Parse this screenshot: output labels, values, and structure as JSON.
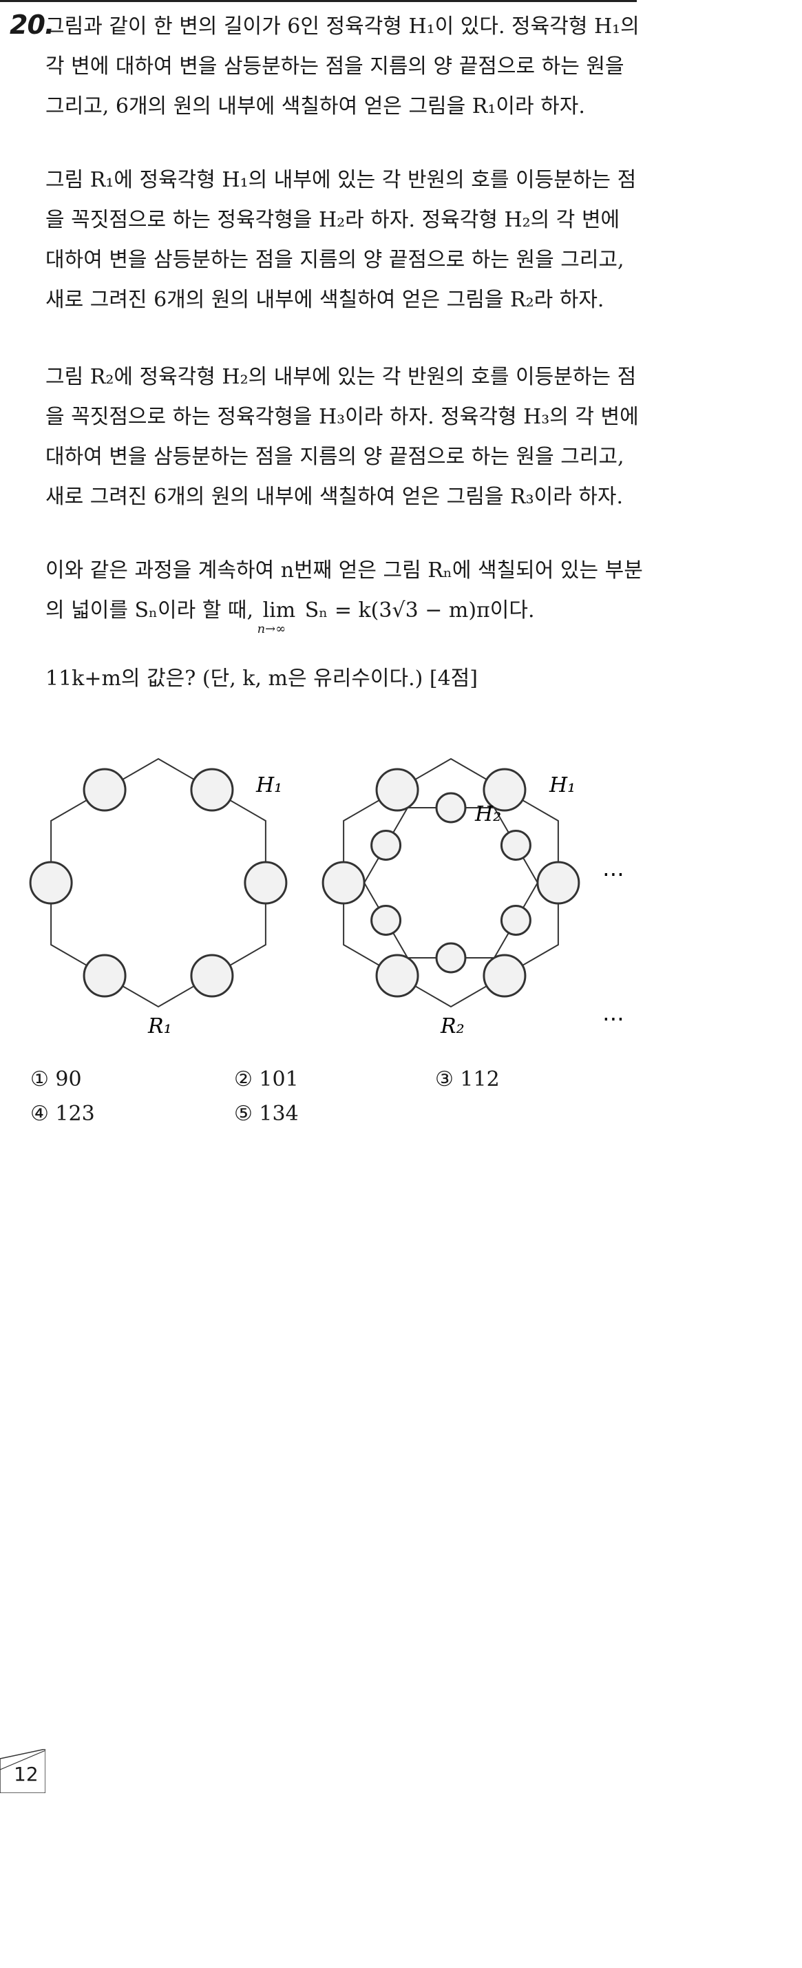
{
  "question": {
    "number": "20.",
    "paragraphs": {
      "p1": "그림과 같이 한 변의 길이가 6인 정육각형 H₁이 있다. 정육각형 H₁의 각 변에 대하여 변을 삼등분하는 점을 지름의 양 끝점으로 하는 원을 그리고, 6개의 원의 내부에 색칠하여 얻은 그림을 R₁이라 하자.",
      "p2": "그림 R₁에 정육각형 H₁의 내부에 있는 각 반원의 호를 이등분하는 점을 꼭짓점으로 하는 정육각형을 H₂라 하자. 정육각형 H₂의 각 변에 대하여 변을 삼등분하는 점을 지름의 양 끝점으로 하는 원을 그리고, 새로 그려진 6개의 원의 내부에 색칠하여 얻은 그림을 R₂라 하자.",
      "p3": "그림 R₂에 정육각형 H₂의 내부에 있는 각 반원의 호를 이등분하는 점을 꼭짓점으로 하는 정육각형을 H₃이라 하자. 정육각형 H₃의 각 변에 대하여 변을 삼등분하는 점을 지름의 양 끝점으로 하는 원을 그리고, 새로 그려진 6개의 원의 내부에 색칠하여 얻은 그림을 R₃이라 하자.",
      "p4_pre": "이와 같은 과정을 계속하여 n번째 얻은 그림 Rₙ에 색칠되어 있는 부분의 넓이를 Sₙ이라 할 때,",
      "p4_lim": "lim",
      "p4_lim_sub": "n→∞",
      "p4_post": "Sₙ = k(3√3 − m)π이다.",
      "p5": "11k+m의 값은? (단, k, m은 유리수이다.) [4점]"
    }
  },
  "figure": {
    "labels": {
      "h1_left": "H₁",
      "r1": "R₁",
      "h1_right": "H₁",
      "h2": "H₂",
      "r2": "R₂",
      "ellipsis_mid": "⋯",
      "ellipsis_low": "⋯"
    },
    "fill_color": "#f2f2f2",
    "stroke_color": "#333333"
  },
  "choices": [
    {
      "label": "① 90"
    },
    {
      "label": "② 101"
    },
    {
      "label": "③ 112"
    },
    {
      "label": "④ 123"
    },
    {
      "label": "⑤ 134"
    }
  ],
  "page_number": "12"
}
